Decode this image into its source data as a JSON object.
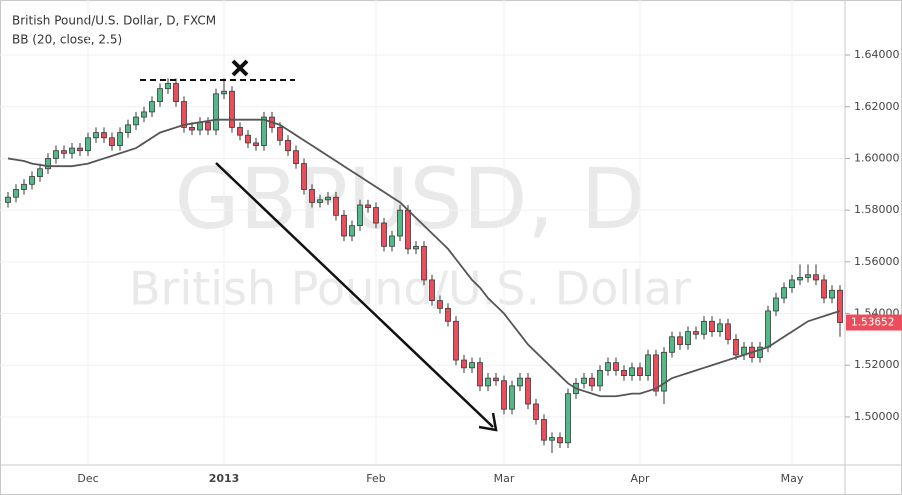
{
  "chart_data": {
    "type": "candlestick",
    "title": "British Pound/U.S. Dollar, D, FXCM",
    "indicator": "BB (20, close, 2.5)",
    "watermark": "GBPUSD, D",
    "watermark_subtitle": "British Pound/U.S. Dollar",
    "categories": [
      null,
      null,
      null,
      null,
      null,
      null,
      null,
      null,
      null,
      null,
      "Dec",
      null,
      null,
      null,
      null,
      null,
      null,
      null,
      null,
      null,
      null,
      null,
      null,
      null,
      null,
      null,
      null,
      "2013",
      null,
      null,
      null,
      null,
      null,
      null,
      null,
      null,
      null,
      null,
      null,
      null,
      null,
      null,
      null,
      null,
      null,
      null,
      "Feb",
      null,
      null,
      null,
      null,
      null,
      null,
      null,
      null,
      null,
      null,
      null,
      null,
      null,
      null,
      null,
      "Mar",
      null,
      null,
      null,
      null,
      null,
      null,
      null,
      null,
      null,
      null,
      null,
      null,
      null,
      null,
      null,
      null,
      "Apr",
      null,
      null,
      null,
      null,
      null,
      null,
      null,
      null,
      null,
      null,
      null,
      null,
      null,
      null,
      null,
      null,
      null,
      null,
      "May",
      null,
      null,
      null,
      null,
      null,
      null
    ],
    "open": [
      1.583,
      1.585,
      1.588,
      1.59,
      1.593,
      1.596,
      1.6,
      1.603,
      1.602,
      1.604,
      1.603,
      1.608,
      1.61,
      1.608,
      1.605,
      1.61,
      1.613,
      1.616,
      1.618,
      1.622,
      1.627,
      1.629,
      1.622,
      1.612,
      1.611,
      1.614,
      1.611,
      1.625,
      1.626,
      1.612,
      1.609,
      1.606,
      1.605,
      1.616,
      1.612,
      1.607,
      1.603,
      1.598,
      1.588,
      1.583,
      1.584,
      1.585,
      1.578,
      1.57,
      1.574,
      1.582,
      1.581,
      1.575,
      1.566,
      1.57,
      1.58,
      1.565,
      1.566,
      1.553,
      1.545,
      1.542,
      1.537,
      1.522,
      1.519,
      1.521,
      1.512,
      1.515,
      1.514,
      1.503,
      1.512,
      1.515,
      1.505,
      1.499,
      1.491,
      1.492,
      1.49,
      1.509,
      1.513,
      1.515,
      1.512,
      1.518,
      1.521,
      1.518,
      1.516,
      1.519,
      1.516,
      1.524,
      1.51,
      1.525,
      1.531,
      1.528,
      1.533,
      1.532,
      1.537,
      1.533,
      1.536,
      1.53,
      1.524,
      1.527,
      1.523,
      1.527,
      1.541,
      1.546,
      1.55,
      1.553,
      1.554,
      1.555,
      1.553,
      1.546,
      1.549
    ],
    "high": [
      1.587,
      1.59,
      1.592,
      1.595,
      1.598,
      1.602,
      1.605,
      1.605,
      1.606,
      1.606,
      1.61,
      1.612,
      1.612,
      1.61,
      1.612,
      1.615,
      1.618,
      1.62,
      1.624,
      1.629,
      1.631,
      1.631,
      1.624,
      1.614,
      1.616,
      1.616,
      1.627,
      1.631,
      1.628,
      1.614,
      1.611,
      1.608,
      1.618,
      1.618,
      1.614,
      1.609,
      1.605,
      1.6,
      1.59,
      1.586,
      1.587,
      1.587,
      1.58,
      1.576,
      1.584,
      1.584,
      1.583,
      1.577,
      1.572,
      1.582,
      1.582,
      1.568,
      1.568,
      1.555,
      1.547,
      1.544,
      1.539,
      1.524,
      1.523,
      1.523,
      1.517,
      1.517,
      1.516,
      1.514,
      1.517,
      1.517,
      1.507,
      1.501,
      1.494,
      1.494,
      1.511,
      1.515,
      1.517,
      1.517,
      1.52,
      1.523,
      1.523,
      1.52,
      1.521,
      1.521,
      1.526,
      1.526,
      1.527,
      1.533,
      1.533,
      1.535,
      1.535,
      1.539,
      1.539,
      1.538,
      1.538,
      1.532,
      1.529,
      1.529,
      1.529,
      1.543,
      1.548,
      1.552,
      1.555,
      1.559,
      1.559,
      1.559,
      1.555,
      1.551,
      1.551
    ],
    "low": [
      1.581,
      1.583,
      1.586,
      1.588,
      1.591,
      1.594,
      1.598,
      1.6,
      1.6,
      1.601,
      1.601,
      1.606,
      1.606,
      1.603,
      1.603,
      1.608,
      1.611,
      1.614,
      1.616,
      1.62,
      1.625,
      1.62,
      1.61,
      1.609,
      1.609,
      1.609,
      1.609,
      1.623,
      1.61,
      1.607,
      1.604,
      1.603,
      1.603,
      1.61,
      1.605,
      1.601,
      1.596,
      1.586,
      1.581,
      1.581,
      1.582,
      1.576,
      1.568,
      1.568,
      1.572,
      1.579,
      1.573,
      1.564,
      1.564,
      1.568,
      1.563,
      1.563,
      1.551,
      1.543,
      1.54,
      1.535,
      1.52,
      1.517,
      1.517,
      1.51,
      1.51,
      1.512,
      1.501,
      1.501,
      1.51,
      1.503,
      1.497,
      1.489,
      1.486,
      1.488,
      1.488,
      1.507,
      1.511,
      1.51,
      1.51,
      1.516,
      1.516,
      1.514,
      1.514,
      1.514,
      1.514,
      1.508,
      1.505,
      1.523,
      1.526,
      1.526,
      1.53,
      1.53,
      1.531,
      1.531,
      1.528,
      1.522,
      1.522,
      1.521,
      1.521,
      1.525,
      1.539,
      1.544,
      1.548,
      1.551,
      1.552,
      1.551,
      1.544,
      1.544,
      1.531
    ],
    "close": [
      1.585,
      1.588,
      1.59,
      1.593,
      1.596,
      1.6,
      1.603,
      1.602,
      1.604,
      1.603,
      1.608,
      1.61,
      1.608,
      1.605,
      1.61,
      1.613,
      1.616,
      1.618,
      1.622,
      1.627,
      1.629,
      1.622,
      1.612,
      1.611,
      1.614,
      1.611,
      1.625,
      1.626,
      1.612,
      1.609,
      1.606,
      1.605,
      1.616,
      1.612,
      1.607,
      1.603,
      1.598,
      1.588,
      1.583,
      1.584,
      1.585,
      1.578,
      1.57,
      1.574,
      1.582,
      1.581,
      1.575,
      1.566,
      1.57,
      1.58,
      1.565,
      1.566,
      1.553,
      1.545,
      1.542,
      1.537,
      1.522,
      1.519,
      1.521,
      1.512,
      1.515,
      1.514,
      1.503,
      1.512,
      1.515,
      1.505,
      1.499,
      1.491,
      1.492,
      1.49,
      1.509,
      1.513,
      1.515,
      1.512,
      1.518,
      1.521,
      1.518,
      1.516,
      1.519,
      1.516,
      1.524,
      1.51,
      1.525,
      1.531,
      1.528,
      1.533,
      1.532,
      1.537,
      1.533,
      1.536,
      1.53,
      1.524,
      1.527,
      1.523,
      1.527,
      1.541,
      1.546,
      1.55,
      1.553,
      1.554,
      1.555,
      1.553,
      1.546,
      1.549,
      1.53652
    ],
    "ma_values": [
      1.6,
      1.5995,
      1.599,
      1.598,
      1.5975,
      1.597,
      1.597,
      1.597,
      1.597,
      1.5975,
      1.598,
      1.599,
      1.6,
      1.601,
      1.602,
      1.603,
      1.604,
      1.606,
      1.608,
      1.61,
      1.611,
      1.612,
      1.613,
      1.6135,
      1.614,
      1.6145,
      1.615,
      1.615,
      1.615,
      1.615,
      1.615,
      1.615,
      1.615,
      1.614,
      1.613,
      1.611,
      1.609,
      1.607,
      1.605,
      1.603,
      1.601,
      1.599,
      1.597,
      1.595,
      1.593,
      1.591,
      1.589,
      1.587,
      1.585,
      1.583,
      1.58,
      1.577,
      1.574,
      1.571,
      1.568,
      1.565,
      1.561,
      1.557,
      1.553,
      1.55,
      1.546,
      1.543,
      1.54,
      1.536,
      1.532,
      1.528,
      1.525,
      1.522,
      1.519,
      1.516,
      1.513,
      1.511,
      1.51,
      1.509,
      1.508,
      1.508,
      1.508,
      1.5085,
      1.509,
      1.509,
      1.51,
      1.511,
      1.513,
      1.515,
      1.516,
      1.517,
      1.518,
      1.519,
      1.52,
      1.521,
      1.522,
      1.523,
      1.524,
      1.525,
      1.526,
      1.527,
      1.529,
      1.531,
      1.533,
      1.535,
      1.537,
      1.538,
      1.539,
      1.54,
      1.541
    ],
    "up_color": "#53b987",
    "down_color": "#eb4d5c",
    "ma_color": "#555555",
    "last_price": 1.53652,
    "ylim": [
      1.4814,
      1.6613
    ],
    "yticks": [
      {
        "value": 1.5,
        "label": "1.50000"
      },
      {
        "value": 1.52,
        "label": "1.52000"
      },
      {
        "value": 1.54,
        "label": "1.54000"
      },
      {
        "value": 1.56,
        "label": "1.56000"
      },
      {
        "value": 1.58,
        "label": "1.58000"
      },
      {
        "value": 1.6,
        "label": "1.60000"
      },
      {
        "value": 1.62,
        "label": "1.62000"
      },
      {
        "value": 1.64,
        "label": "1.64000"
      }
    ],
    "grid": true
  }
}
